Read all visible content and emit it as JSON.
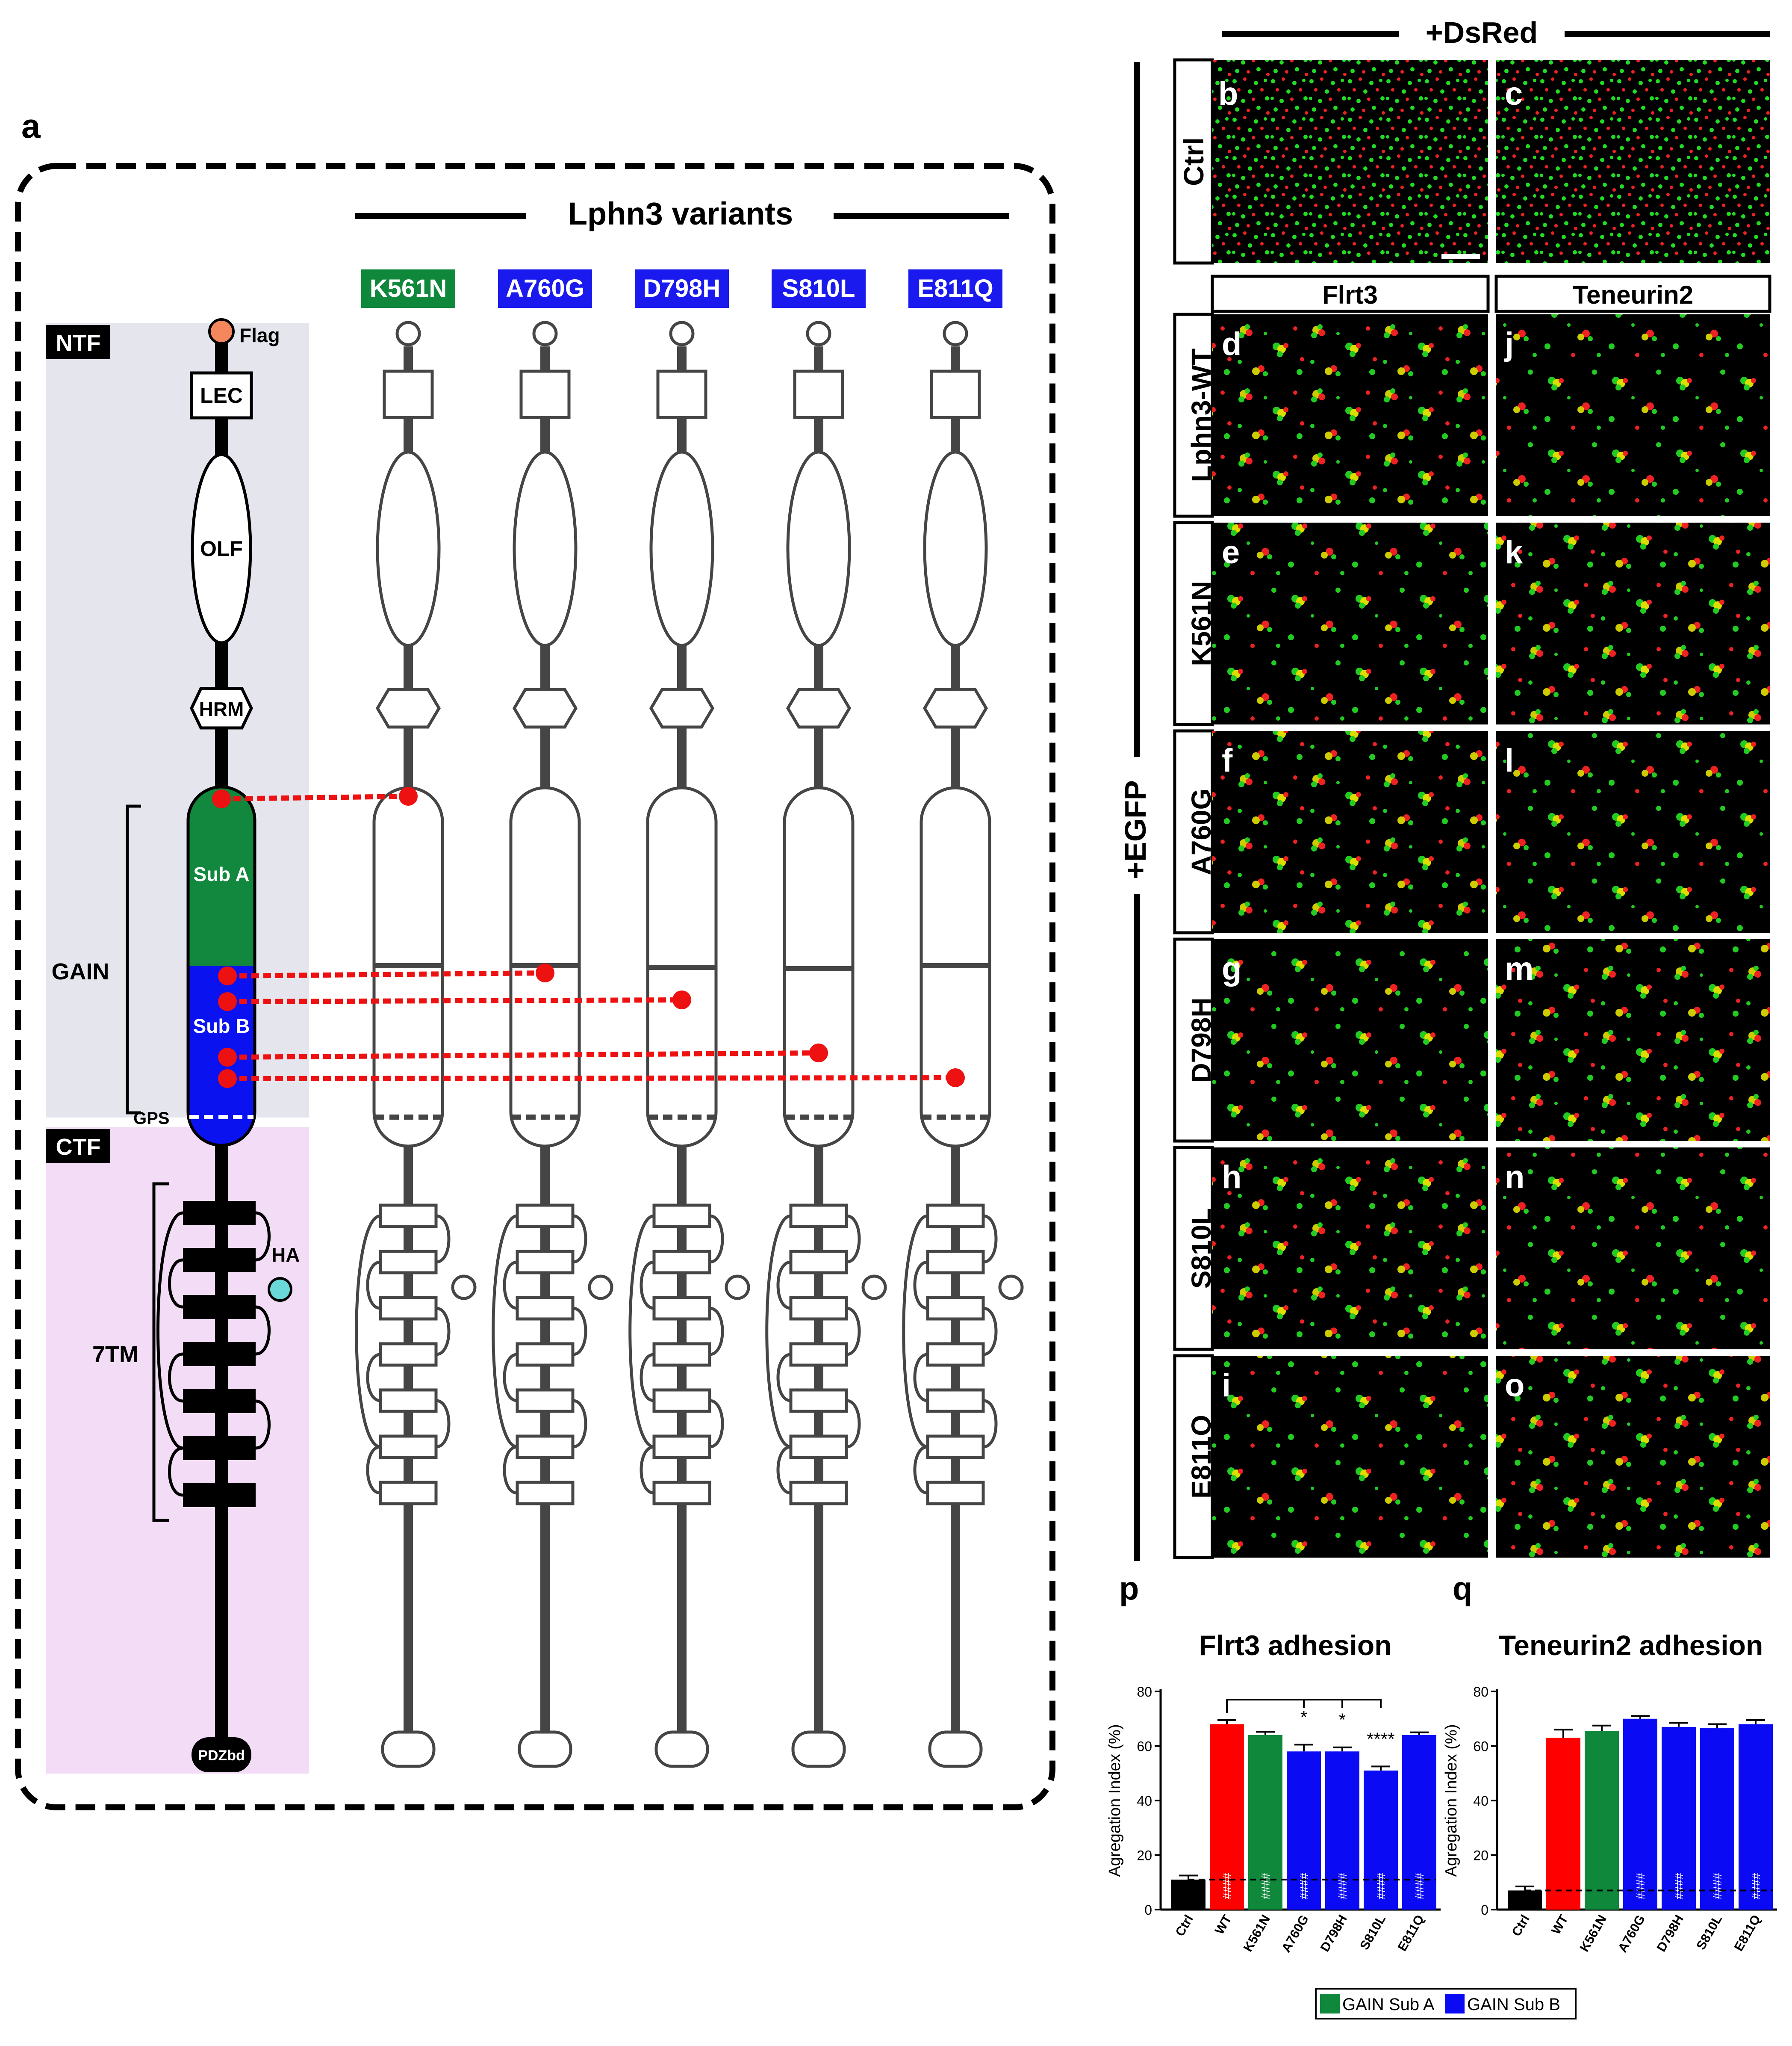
{
  "panel_a": {
    "letter": "a",
    "title": "Lphn3 variants",
    "ntf": "NTF",
    "ctf": "CTF",
    "flag": "Flag",
    "lec": "LEC",
    "olf": "OLF",
    "hrm": "HRM",
    "gain": "GAIN",
    "sub_a": "Sub A",
    "sub_b": "Sub B",
    "gps": "GPS",
    "ha": "HA",
    "tm": "7TM",
    "pdz": "PDZbd",
    "variants": [
      {
        "label": "K561N",
        "color": "#10883c"
      },
      {
        "label": "A760G",
        "color": "#1a1aee"
      },
      {
        "label": "D798H",
        "color": "#1a1aee"
      },
      {
        "label": "S810L",
        "color": "#1a1aee"
      },
      {
        "label": "E811Q",
        "color": "#1a1aee"
      }
    ],
    "colors": {
      "sub_a": "#11883d",
      "sub_b": "#0a12f0",
      "ntf_bg": "#e5e6ed",
      "ctf_bg": "#f3dcf6",
      "mutation": "#ee1111",
      "flag": "#f4875c",
      "ha": "#6ad8d8"
    }
  },
  "micro": {
    "top_label": "+DsRed",
    "side_label": "+EGFP",
    "col1": "Flrt3",
    "col2": "Teneurin2",
    "rows": [
      {
        "label": "Lphn3-WT",
        "left": "d",
        "right": "j"
      },
      {
        "label": "K561N",
        "left": "e",
        "right": "k"
      },
      {
        "label": "A760G",
        "left": "f",
        "right": "l"
      },
      {
        "label": "D798H",
        "left": "g",
        "right": "m"
      },
      {
        "label": "S810L",
        "left": "h",
        "right": "n"
      },
      {
        "label": "E811Q",
        "left": "i",
        "right": "o"
      }
    ],
    "ctrl": {
      "label": "Ctrl",
      "left": "b",
      "right": "c"
    }
  },
  "chart_data": [
    {
      "type": "bar",
      "panel": "p",
      "title": "Flrt3 adhesion",
      "ylabel": "Agregation Index (%)",
      "ylim": [
        0,
        80
      ],
      "yticks": [
        0,
        20,
        40,
        60,
        80
      ],
      "categories": [
        "Ctrl",
        "WT",
        "K561N",
        "A760G",
        "D798H",
        "S810L",
        "E811Q"
      ],
      "values": [
        11,
        68,
        64,
        58,
        58,
        51,
        64
      ],
      "errors": [
        1.5,
        1.5,
        1.2,
        2.5,
        1.5,
        1.5,
        1
      ],
      "bar_colors": [
        "#000000",
        "#ff0000",
        "#10883c",
        "#0a0af5",
        "#0a0af5",
        "#0a0af5",
        "#0a0af5"
      ],
      "inside_labels": [
        "",
        "####",
        "####",
        "####",
        "####",
        "####",
        "####"
      ],
      "sig_labels": [
        "",
        "",
        "",
        "*",
        "*",
        "****",
        ""
      ],
      "ctrl_line": 11
    },
    {
      "type": "bar",
      "panel": "q",
      "title": "Teneurin2 adhesion",
      "ylabel": "Agregation Index (%)",
      "ylim": [
        0,
        80
      ],
      "yticks": [
        0,
        20,
        40,
        60,
        80
      ],
      "categories": [
        "Ctrl",
        "WT",
        "K561N",
        "A760G",
        "D798H",
        "S810L",
        "E811Q"
      ],
      "values": [
        7,
        63,
        65.5,
        70,
        67,
        66.5,
        68
      ],
      "errors": [
        1.5,
        3,
        2,
        1,
        1.5,
        1.5,
        1.5
      ],
      "bar_colors": [
        "#000000",
        "#ff0000",
        "#10883c",
        "#0a0af5",
        "#0a0af5",
        "#0a0af5",
        "#0a0af5"
      ],
      "inside_labels": [
        "",
        "",
        "",
        "####",
        "####",
        "####",
        "####"
      ],
      "sig_labels": [
        "",
        "",
        "",
        "",
        "",
        "",
        ""
      ],
      "ctrl_line": 7
    }
  ],
  "legend": [
    {
      "label": "GAIN Sub A",
      "color": "#10883c"
    },
    {
      "label": "GAIN Sub B",
      "color": "#0a0af5"
    }
  ]
}
